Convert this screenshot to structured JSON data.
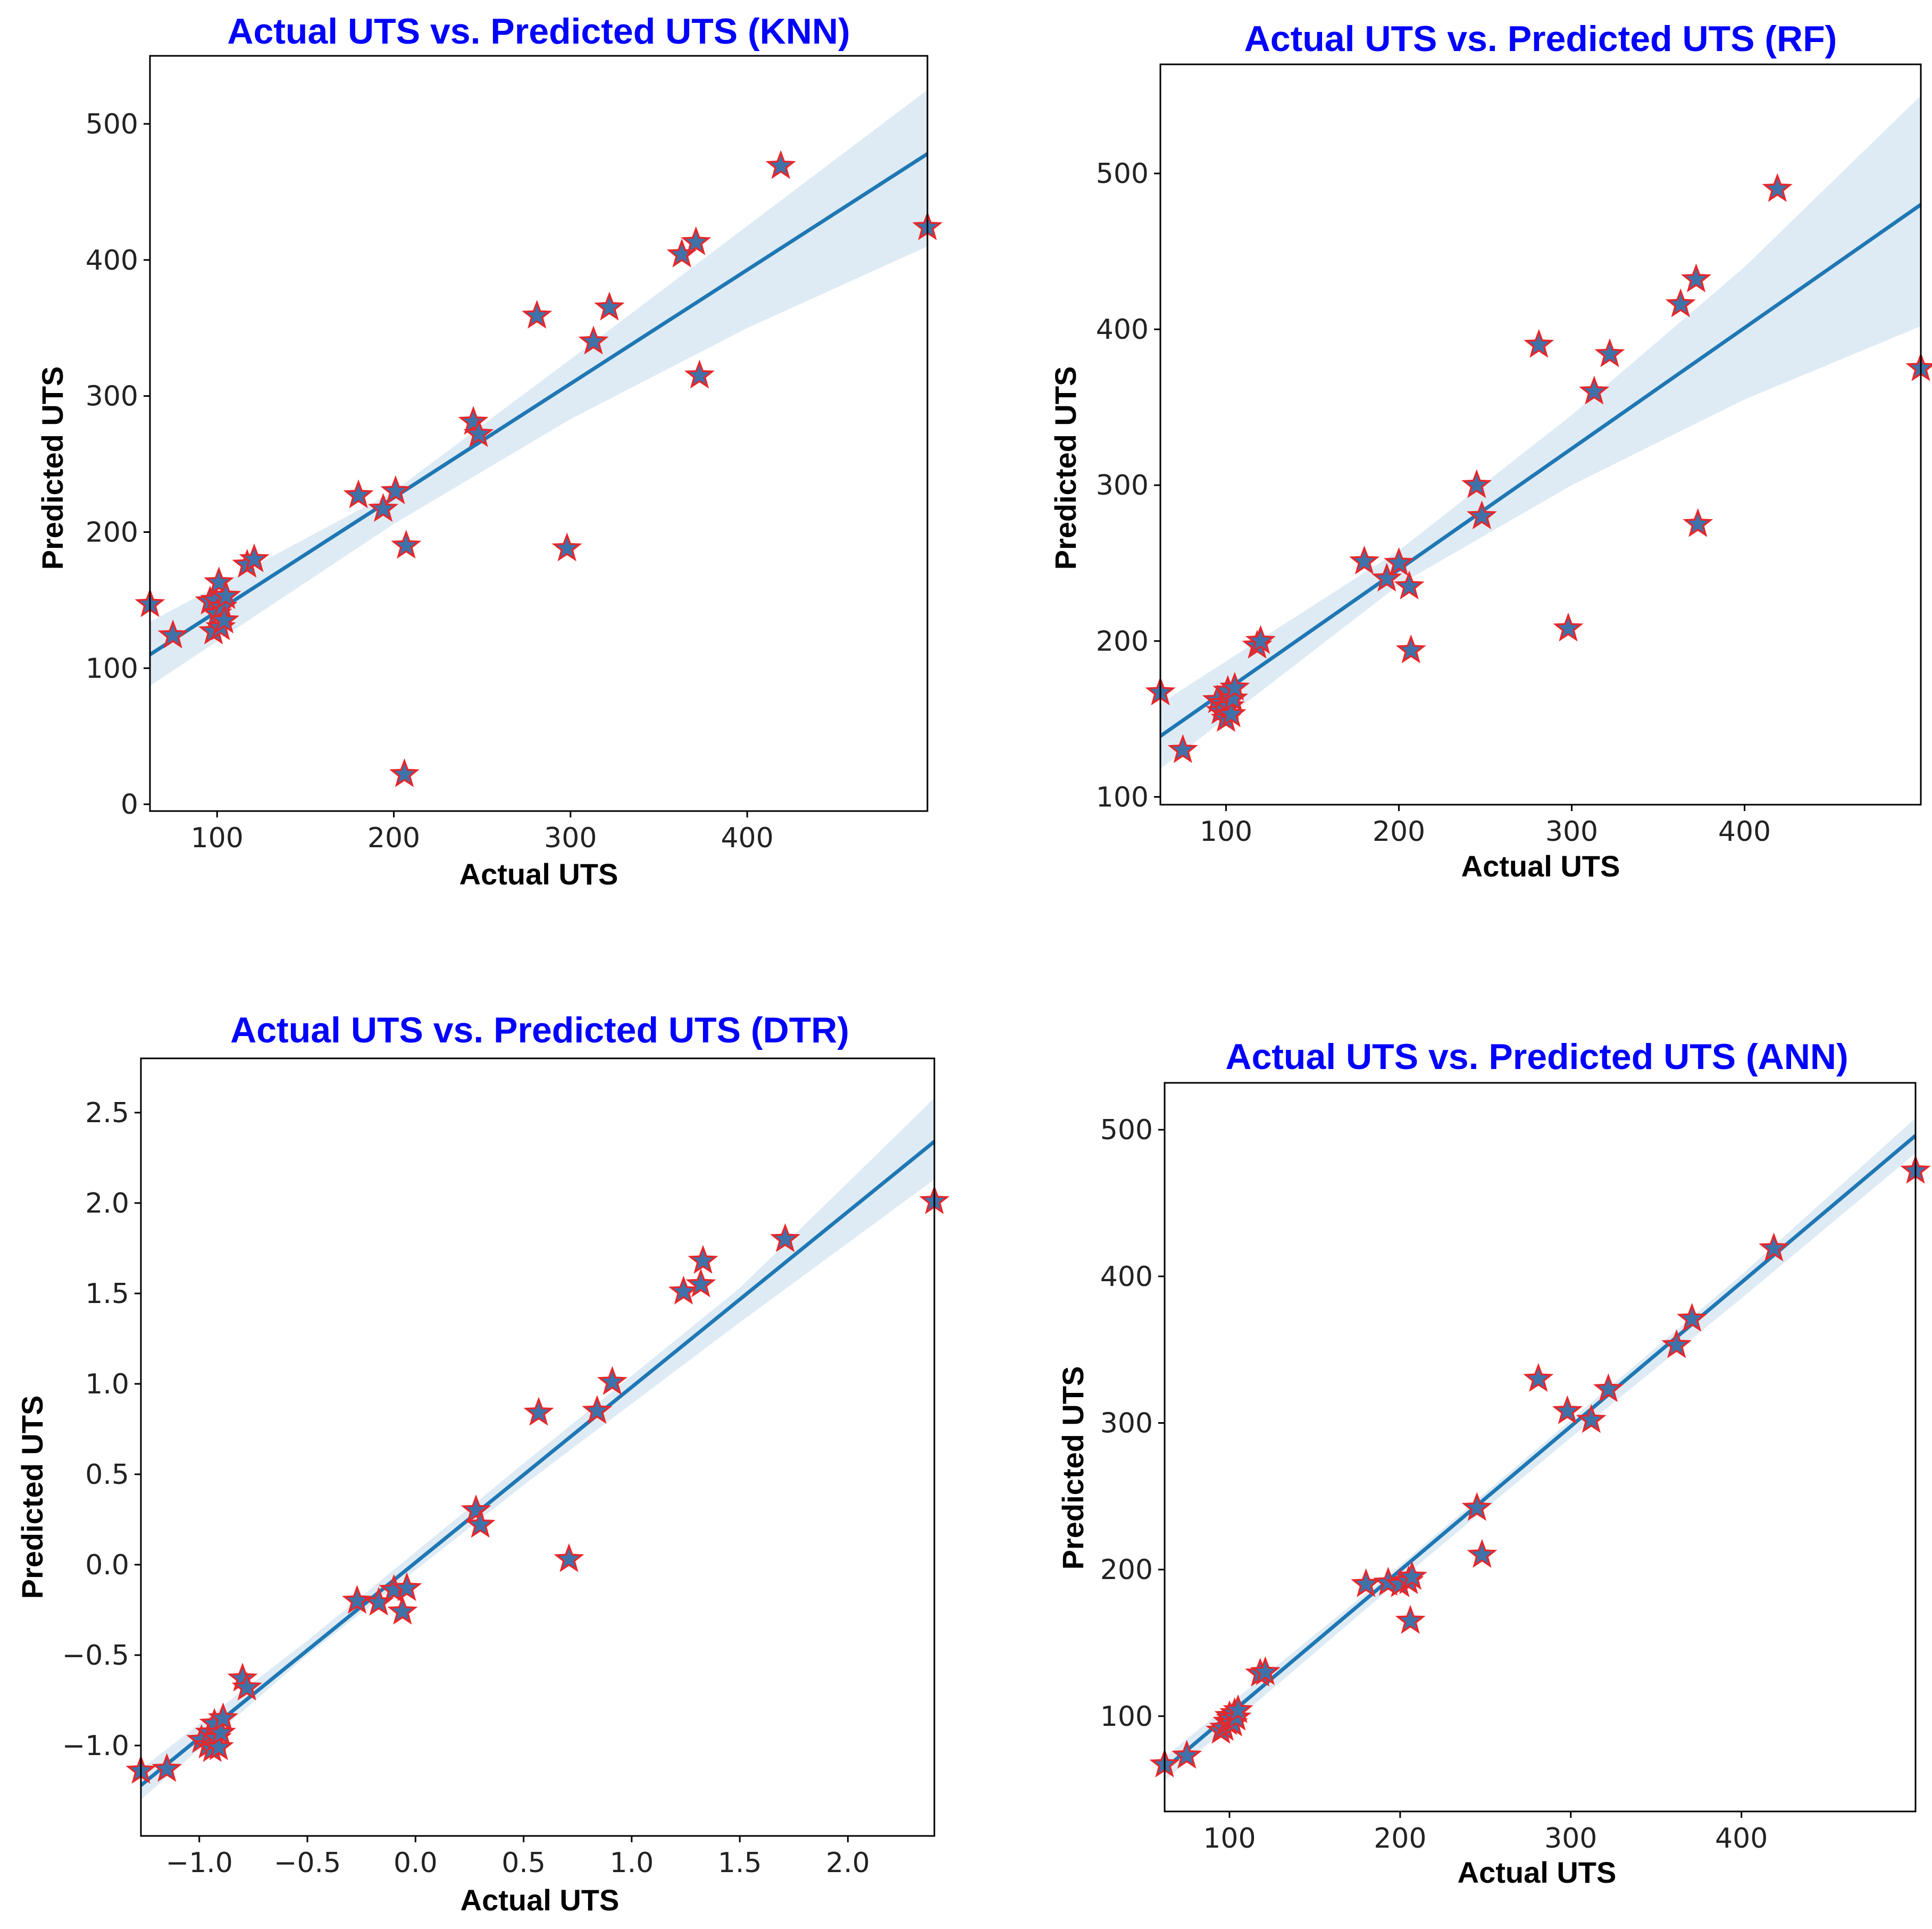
{
  "chart_data": [
    {
      "type": "scatter",
      "title": "Actual UTS vs. Predicted UTS (KNN)",
      "xlabel": "Actual UTS",
      "ylabel": "Predicted UTS",
      "xlim": [
        62,
        502
      ],
      "ylim": [
        -5,
        550
      ],
      "xticks": [
        100,
        200,
        300,
        400
      ],
      "xtick_labels": [
        "100",
        "200",
        "300",
        "400"
      ],
      "yticks": [
        0,
        100,
        200,
        300,
        400,
        500
      ],
      "ytick_labels": [
        "0",
        "100",
        "200",
        "300",
        "400",
        "500"
      ],
      "grid": false,
      "series": [
        {
          "name": "points",
          "marker": "star",
          "x": [
            62,
            75,
            96,
            98,
            99,
            100,
            101,
            102,
            103,
            104,
            105,
            117,
            121,
            180,
            194,
            201,
            206,
            207,
            245,
            248,
            281,
            298,
            313,
            322,
            363,
            371,
            373,
            419,
            502
          ],
          "y": [
            147,
            124,
            149,
            127,
            150,
            140,
            163,
            130,
            145,
            135,
            153,
            176,
            180,
            227,
            217,
            230,
            22,
            190,
            281,
            272,
            359,
            188,
            340,
            365,
            404,
            413,
            315,
            469,
            424
          ]
        }
      ],
      "fit": {
        "x": [
          62,
          502
        ],
        "y": [
          110,
          478
        ]
      },
      "ci": {
        "x": [
          62,
          200,
          300,
          400,
          502
        ],
        "lower": [
          87,
          206,
          283,
          350,
          410
        ],
        "upper": [
          134,
          230,
          327,
          425,
          525
        ]
      }
    },
    {
      "type": "scatter",
      "title": "Actual UTS vs. Predicted UTS (RF)",
      "xlabel": "Actual UTS",
      "ylabel": "Predicted UTS",
      "xlim": [
        62,
        502
      ],
      "ylim": [
        95,
        570
      ],
      "xticks": [
        100,
        200,
        300,
        400
      ],
      "xtick_labels": [
        "100",
        "200",
        "300",
        "400"
      ],
      "yticks": [
        100,
        200,
        300,
        400,
        500
      ],
      "ytick_labels": [
        "100",
        "200",
        "300",
        "400",
        "500"
      ],
      "grid": false,
      "series": [
        {
          "name": "points",
          "marker": "star",
          "x": [
            62,
            75,
            95,
            97,
            98,
            100,
            101,
            102,
            103,
            104,
            105,
            118,
            120,
            180,
            193,
            200,
            206,
            207,
            245,
            248,
            281,
            298,
            313,
            322,
            363,
            372,
            373,
            419,
            502
          ],
          "y": [
            167,
            130,
            162,
            155,
            160,
            150,
            168,
            158,
            153,
            163,
            170,
            197,
            200,
            251,
            240,
            250,
            235,
            194,
            300,
            280,
            390,
            208,
            360,
            384,
            416,
            432,
            275,
            490,
            375
          ]
        }
      ],
      "fit": {
        "x": [
          62,
          502
        ],
        "y": [
          139,
          480
        ]
      },
      "ci": {
        "x": [
          62,
          200,
          300,
          400,
          502
        ],
        "lower": [
          118,
          236,
          300,
          355,
          402
        ],
        "upper": [
          160,
          258,
          345,
          440,
          550
        ]
      }
    },
    {
      "type": "scatter",
      "title": "Actual UTS vs. Predicted UTS (DTR)",
      "xlabel": "Actual UTS",
      "ylabel": "Predicted UTS",
      "xlim": [
        -1.27,
        2.4
      ],
      "ylim": [
        -1.5,
        2.8
      ],
      "xticks": [
        -1.0,
        -0.5,
        0.0,
        0.5,
        1.0,
        1.5,
        2.0
      ],
      "xtick_labels": [
        "−1.0",
        "−0.5",
        "0.0",
        "0.5",
        "1.0",
        "1.5",
        "2.0"
      ],
      "yticks": [
        -1.0,
        -0.5,
        0.0,
        0.5,
        1.0,
        1.5,
        2.0,
        2.5
      ],
      "ytick_labels": [
        "−1.0",
        "−0.5",
        "0.0",
        "0.5",
        "1.0",
        "1.5",
        "2.0",
        "2.5"
      ],
      "grid": false,
      "series": [
        {
          "name": "points",
          "marker": "star",
          "x": [
            -1.27,
            -1.15,
            -0.99,
            -0.96,
            -0.95,
            -0.94,
            -0.93,
            -0.92,
            -0.91,
            -0.9,
            -0.89,
            -0.8,
            -0.78,
            -0.27,
            -0.17,
            -0.1,
            -0.06,
            -0.04,
            0.28,
            0.3,
            0.57,
            0.71,
            0.84,
            0.91,
            1.24,
            1.32,
            1.33,
            1.71,
            2.4
          ],
          "y": [
            -1.14,
            -1.13,
            -0.97,
            -1.0,
            -0.93,
            -1.02,
            -0.88,
            -0.96,
            -1.01,
            -0.93,
            -0.85,
            -0.63,
            -0.68,
            -0.2,
            -0.21,
            -0.14,
            -0.26,
            -0.13,
            0.3,
            0.22,
            0.84,
            0.03,
            0.85,
            1.01,
            1.51,
            1.55,
            1.68,
            1.8,
            2.01
          ]
        }
      ],
      "fit": {
        "x": [
          -1.27,
          2.4
        ],
        "y": [
          -1.22,
          2.34
        ]
      },
      "ci": {
        "x": [
          -1.27,
          -0.5,
          0.5,
          1.5,
          2.4
        ],
        "lower": [
          -1.3,
          -0.5,
          0.44,
          1.34,
          2.13
        ],
        "upper": [
          -1.13,
          -0.42,
          0.56,
          1.53,
          2.58
        ]
      }
    },
    {
      "type": "scatter",
      "title": "Actual UTS vs. Predicted UTS (ANN)",
      "xlabel": "Actual UTS",
      "ylabel": "Predicted UTS",
      "xlim": [
        62,
        502
      ],
      "ylim": [
        35,
        532
      ],
      "xticks": [
        100,
        200,
        300,
        400
      ],
      "xtick_labels": [
        "100",
        "200",
        "300",
        "400"
      ],
      "yticks": [
        100,
        200,
        300,
        400,
        500
      ],
      "ytick_labels": [
        "100",
        "200",
        "300",
        "400",
        "500"
      ],
      "grid": false,
      "series": [
        {
          "name": "points",
          "marker": "star",
          "x": [
            62,
            75,
            95,
            97,
            99,
            100,
            101,
            102,
            103,
            104,
            105,
            118,
            121,
            180,
            193,
            200,
            205,
            206,
            207,
            245,
            248,
            281,
            298,
            312,
            322,
            362,
            371,
            419,
            502
          ],
          "y": [
            67,
            73,
            90,
            92,
            96,
            100,
            98,
            95,
            102,
            99,
            104,
            129,
            130,
            190,
            191,
            190,
            192,
            165,
            195,
            242,
            210,
            330,
            308,
            302,
            323,
            353,
            371,
            419,
            472
          ]
        }
      ],
      "fit": {
        "x": [
          62,
          502
        ],
        "y": [
          64,
          496
        ]
      },
      "ci": {
        "x": [
          62,
          200,
          300,
          400,
          502
        ],
        "lower": [
          56,
          193,
          290,
          385,
          484
        ],
        "upper": [
          72,
          203,
          302,
          401,
          508
        ]
      }
    }
  ]
}
